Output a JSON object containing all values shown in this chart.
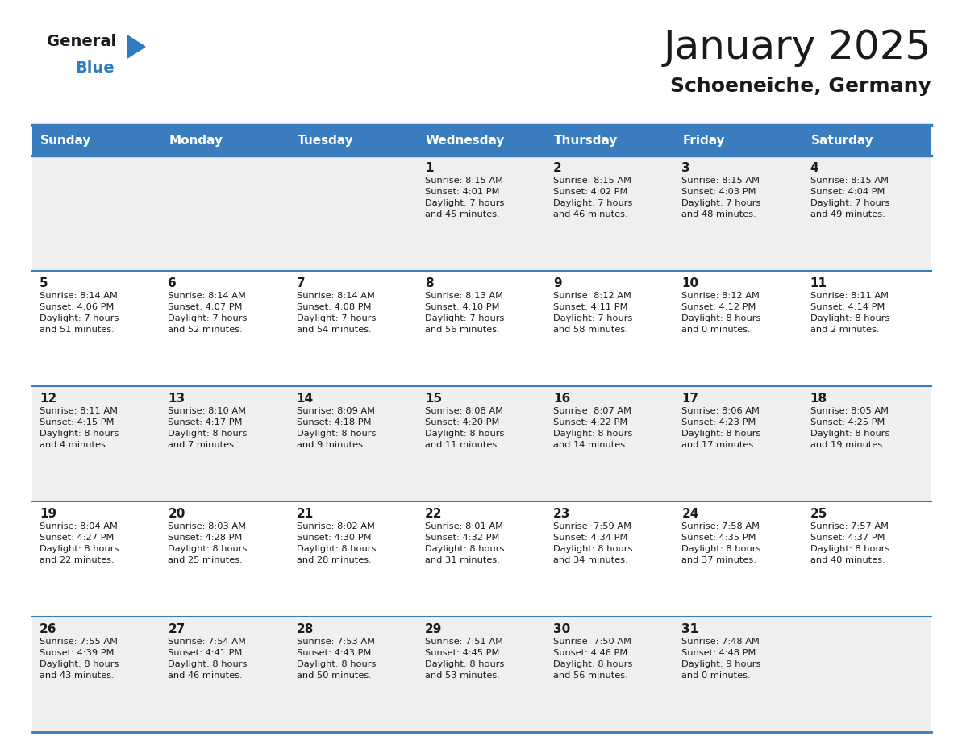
{
  "title": "January 2025",
  "subtitle": "Schoeneiche, Germany",
  "header_color": "#3A7DBF",
  "header_text_color": "#FFFFFF",
  "day_headers": [
    "Sunday",
    "Monday",
    "Tuesday",
    "Wednesday",
    "Thursday",
    "Friday",
    "Saturday"
  ],
  "row_colors": [
    "#EFEFEF",
    "#FFFFFF",
    "#EFEFEF",
    "#FFFFFF",
    "#EFEFEF"
  ],
  "grid_line_color": "#3A7DBF",
  "text_color": "#1A1A1A",
  "logo_general_color": "#1A1A1A",
  "logo_blue_color": "#2E7BBF",
  "calendar": [
    [
      {
        "day": null,
        "info": ""
      },
      {
        "day": null,
        "info": ""
      },
      {
        "day": null,
        "info": ""
      },
      {
        "day": 1,
        "info": "Sunrise: 8:15 AM\nSunset: 4:01 PM\nDaylight: 7 hours\nand 45 minutes."
      },
      {
        "day": 2,
        "info": "Sunrise: 8:15 AM\nSunset: 4:02 PM\nDaylight: 7 hours\nand 46 minutes."
      },
      {
        "day": 3,
        "info": "Sunrise: 8:15 AM\nSunset: 4:03 PM\nDaylight: 7 hours\nand 48 minutes."
      },
      {
        "day": 4,
        "info": "Sunrise: 8:15 AM\nSunset: 4:04 PM\nDaylight: 7 hours\nand 49 minutes."
      }
    ],
    [
      {
        "day": 5,
        "info": "Sunrise: 8:14 AM\nSunset: 4:06 PM\nDaylight: 7 hours\nand 51 minutes."
      },
      {
        "day": 6,
        "info": "Sunrise: 8:14 AM\nSunset: 4:07 PM\nDaylight: 7 hours\nand 52 minutes."
      },
      {
        "day": 7,
        "info": "Sunrise: 8:14 AM\nSunset: 4:08 PM\nDaylight: 7 hours\nand 54 minutes."
      },
      {
        "day": 8,
        "info": "Sunrise: 8:13 AM\nSunset: 4:10 PM\nDaylight: 7 hours\nand 56 minutes."
      },
      {
        "day": 9,
        "info": "Sunrise: 8:12 AM\nSunset: 4:11 PM\nDaylight: 7 hours\nand 58 minutes."
      },
      {
        "day": 10,
        "info": "Sunrise: 8:12 AM\nSunset: 4:12 PM\nDaylight: 8 hours\nand 0 minutes."
      },
      {
        "day": 11,
        "info": "Sunrise: 8:11 AM\nSunset: 4:14 PM\nDaylight: 8 hours\nand 2 minutes."
      }
    ],
    [
      {
        "day": 12,
        "info": "Sunrise: 8:11 AM\nSunset: 4:15 PM\nDaylight: 8 hours\nand 4 minutes."
      },
      {
        "day": 13,
        "info": "Sunrise: 8:10 AM\nSunset: 4:17 PM\nDaylight: 8 hours\nand 7 minutes."
      },
      {
        "day": 14,
        "info": "Sunrise: 8:09 AM\nSunset: 4:18 PM\nDaylight: 8 hours\nand 9 minutes."
      },
      {
        "day": 15,
        "info": "Sunrise: 8:08 AM\nSunset: 4:20 PM\nDaylight: 8 hours\nand 11 minutes."
      },
      {
        "day": 16,
        "info": "Sunrise: 8:07 AM\nSunset: 4:22 PM\nDaylight: 8 hours\nand 14 minutes."
      },
      {
        "day": 17,
        "info": "Sunrise: 8:06 AM\nSunset: 4:23 PM\nDaylight: 8 hours\nand 17 minutes."
      },
      {
        "day": 18,
        "info": "Sunrise: 8:05 AM\nSunset: 4:25 PM\nDaylight: 8 hours\nand 19 minutes."
      }
    ],
    [
      {
        "day": 19,
        "info": "Sunrise: 8:04 AM\nSunset: 4:27 PM\nDaylight: 8 hours\nand 22 minutes."
      },
      {
        "day": 20,
        "info": "Sunrise: 8:03 AM\nSunset: 4:28 PM\nDaylight: 8 hours\nand 25 minutes."
      },
      {
        "day": 21,
        "info": "Sunrise: 8:02 AM\nSunset: 4:30 PM\nDaylight: 8 hours\nand 28 minutes."
      },
      {
        "day": 22,
        "info": "Sunrise: 8:01 AM\nSunset: 4:32 PM\nDaylight: 8 hours\nand 31 minutes."
      },
      {
        "day": 23,
        "info": "Sunrise: 7:59 AM\nSunset: 4:34 PM\nDaylight: 8 hours\nand 34 minutes."
      },
      {
        "day": 24,
        "info": "Sunrise: 7:58 AM\nSunset: 4:35 PM\nDaylight: 8 hours\nand 37 minutes."
      },
      {
        "day": 25,
        "info": "Sunrise: 7:57 AM\nSunset: 4:37 PM\nDaylight: 8 hours\nand 40 minutes."
      }
    ],
    [
      {
        "day": 26,
        "info": "Sunrise: 7:55 AM\nSunset: 4:39 PM\nDaylight: 8 hours\nand 43 minutes."
      },
      {
        "day": 27,
        "info": "Sunrise: 7:54 AM\nSunset: 4:41 PM\nDaylight: 8 hours\nand 46 minutes."
      },
      {
        "day": 28,
        "info": "Sunrise: 7:53 AM\nSunset: 4:43 PM\nDaylight: 8 hours\nand 50 minutes."
      },
      {
        "day": 29,
        "info": "Sunrise: 7:51 AM\nSunset: 4:45 PM\nDaylight: 8 hours\nand 53 minutes."
      },
      {
        "day": 30,
        "info": "Sunrise: 7:50 AM\nSunset: 4:46 PM\nDaylight: 8 hours\nand 56 minutes."
      },
      {
        "day": 31,
        "info": "Sunrise: 7:48 AM\nSunset: 4:48 PM\nDaylight: 9 hours\nand 0 minutes."
      },
      {
        "day": null,
        "info": ""
      }
    ]
  ]
}
